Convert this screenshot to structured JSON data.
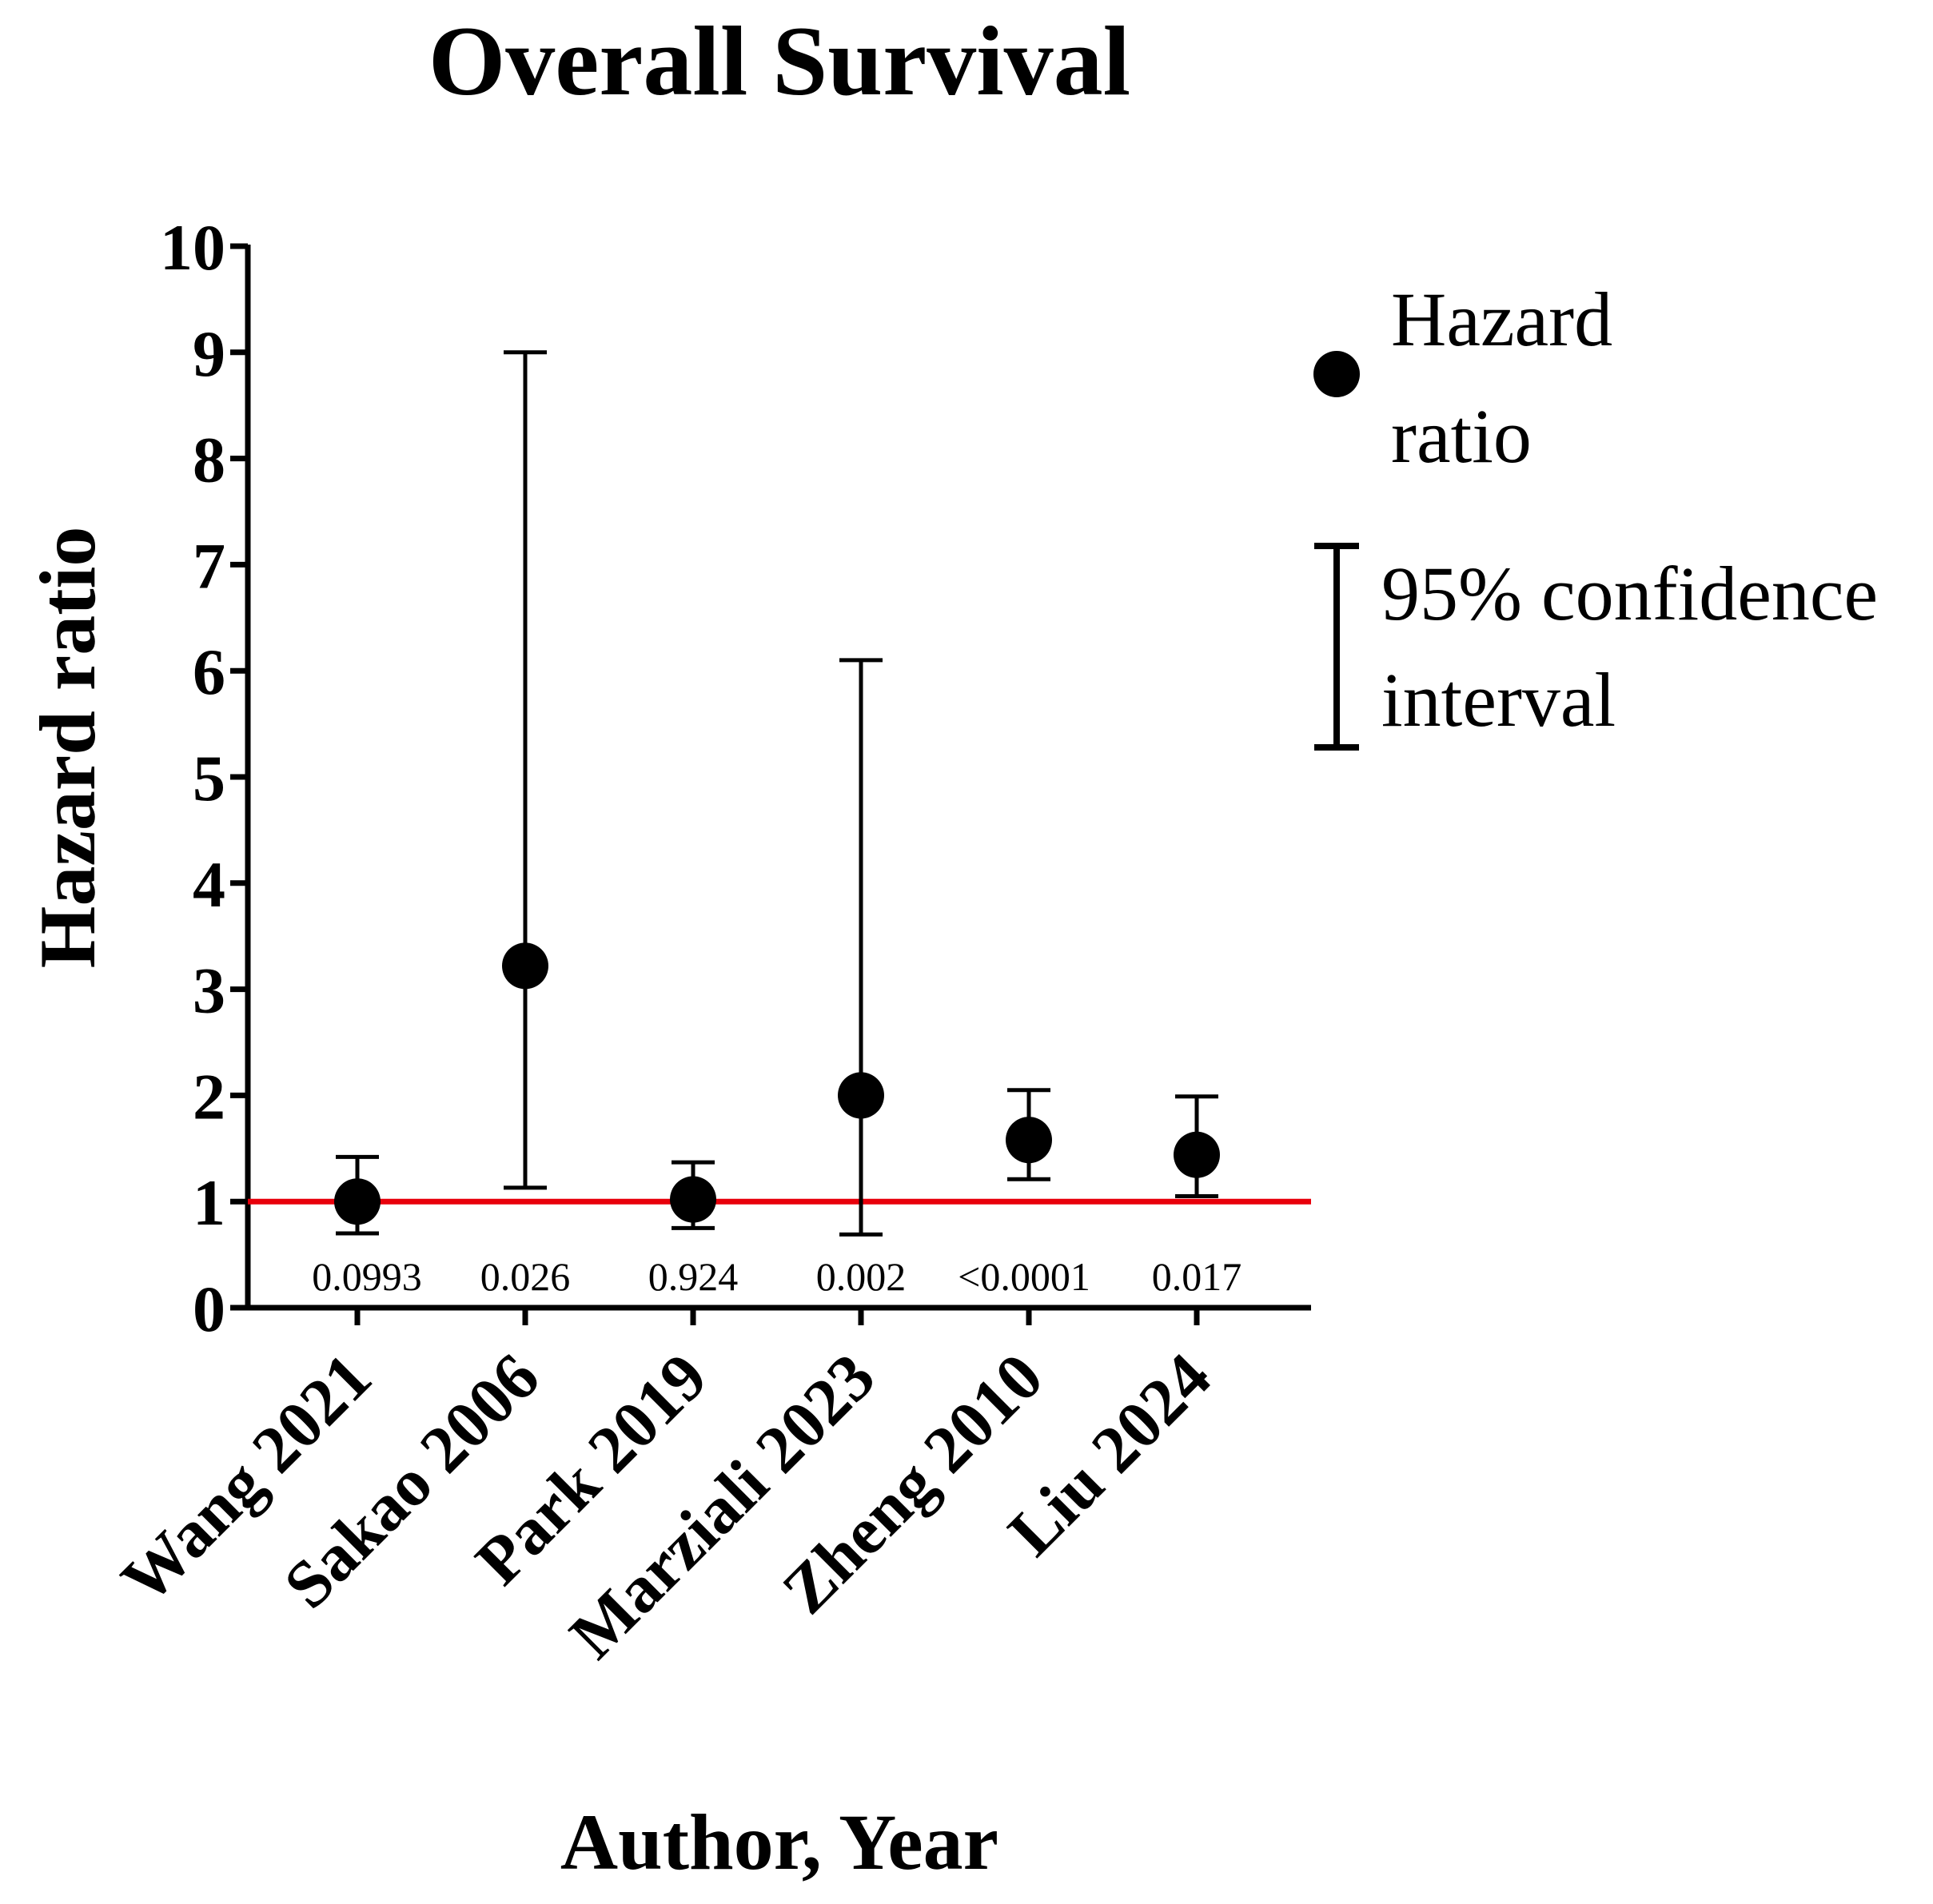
{
  "chart_data": {
    "type": "scatter",
    "title": "Overall Survival",
    "xlabel": "Author, Year",
    "ylabel": "Hazard ratio",
    "ylim": [
      0,
      10
    ],
    "yticks": [
      0,
      1,
      2,
      3,
      4,
      5,
      6,
      7,
      8,
      9,
      10
    ],
    "reference_line": {
      "y": 1,
      "color": "#e8000b"
    },
    "categories": [
      "Wang 2021",
      "Sakao 2006",
      "Park 2019",
      "Marziali 2023",
      "Zheng 2010",
      "Liu 2024"
    ],
    "series": [
      {
        "name": "Hazard ratio",
        "values": [
          1.0,
          3.22,
          1.02,
          2.0,
          1.58,
          1.44
        ],
        "ci_lower": [
          0.7,
          1.13,
          0.75,
          0.69,
          1.21,
          1.05
        ],
        "ci_upper": [
          1.42,
          9.0,
          1.37,
          6.1,
          2.05,
          1.99
        ]
      }
    ],
    "p_values": [
      "0.0993",
      "0.026",
      "0.924",
      "0.002",
      "<0.0001",
      "0.017"
    ],
    "legend": {
      "placement": "right",
      "marker_label_lines": [
        "Hazard",
        "ratio"
      ],
      "errorbar_label_lines": [
        "95% confidence",
        "interval"
      ]
    },
    "colors": {
      "marks": "#000000",
      "reference_line": "#e8000b"
    }
  }
}
